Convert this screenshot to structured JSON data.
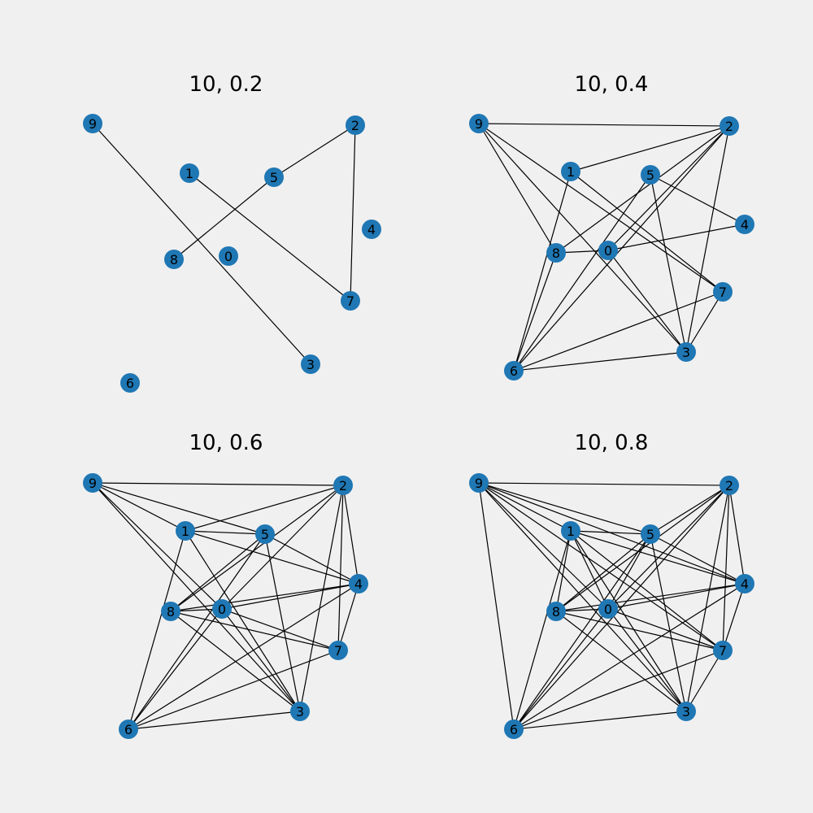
{
  "colors": {
    "background": "#f0f0f0",
    "node": "#1f77b4",
    "edge": "#000000",
    "label": "#000000"
  },
  "panels": [
    {
      "id": "p02",
      "title": "10, 0.2",
      "edges": [
        [
          9,
          3
        ],
        [
          1,
          7
        ],
        [
          2,
          5
        ],
        [
          2,
          7
        ],
        [
          5,
          8
        ]
      ]
    },
    {
      "id": "p04",
      "title": "10, 0.4",
      "edges": [
        [
          9,
          2
        ],
        [
          9,
          8
        ],
        [
          9,
          3
        ],
        [
          9,
          7
        ],
        [
          1,
          2
        ],
        [
          1,
          6
        ],
        [
          1,
          7
        ],
        [
          2,
          8
        ],
        [
          2,
          0
        ],
        [
          2,
          6
        ],
        [
          2,
          3
        ],
        [
          5,
          4
        ],
        [
          5,
          6
        ],
        [
          5,
          3
        ],
        [
          8,
          6
        ],
        [
          8,
          0
        ],
        [
          0,
          4
        ],
        [
          0,
          3
        ],
        [
          6,
          7
        ],
        [
          6,
          3
        ],
        [
          7,
          3
        ]
      ]
    },
    {
      "id": "p06",
      "title": "10, 0.6",
      "edges": [
        [
          9,
          2
        ],
        [
          9,
          1
        ],
        [
          9,
          5
        ],
        [
          9,
          3
        ],
        [
          9,
          0
        ],
        [
          1,
          2
        ],
        [
          1,
          5
        ],
        [
          1,
          4
        ],
        [
          1,
          6
        ],
        [
          1,
          3
        ],
        [
          2,
          8
        ],
        [
          2,
          0
        ],
        [
          2,
          3
        ],
        [
          2,
          7
        ],
        [
          2,
          4
        ],
        [
          5,
          8
        ],
        [
          5,
          4
        ],
        [
          5,
          3
        ],
        [
          4,
          8
        ],
        [
          4,
          0
        ],
        [
          4,
          6
        ],
        [
          4,
          7
        ],
        [
          8,
          0
        ],
        [
          8,
          7
        ],
        [
          8,
          3
        ],
        [
          0,
          7
        ],
        [
          0,
          6
        ],
        [
          0,
          3
        ],
        [
          6,
          7
        ],
        [
          6,
          3
        ],
        [
          6,
          5
        ]
      ]
    },
    {
      "id": "p08",
      "title": "10, 0.8",
      "edges": [
        [
          9,
          2
        ],
        [
          9,
          1
        ],
        [
          9,
          5
        ],
        [
          9,
          4
        ],
        [
          9,
          7
        ],
        [
          9,
          3
        ],
        [
          9,
          0
        ],
        [
          9,
          6
        ],
        [
          1,
          5
        ],
        [
          1,
          4
        ],
        [
          1,
          8
        ],
        [
          1,
          6
        ],
        [
          1,
          0
        ],
        [
          1,
          3
        ],
        [
          1,
          7
        ],
        [
          2,
          5
        ],
        [
          2,
          8
        ],
        [
          2,
          0
        ],
        [
          2,
          6
        ],
        [
          2,
          7
        ],
        [
          2,
          3
        ],
        [
          2,
          4
        ],
        [
          5,
          8
        ],
        [
          5,
          4
        ],
        [
          5,
          6
        ],
        [
          5,
          3
        ],
        [
          5,
          0
        ],
        [
          4,
          0
        ],
        [
          4,
          8
        ],
        [
          4,
          6
        ],
        [
          4,
          7
        ],
        [
          8,
          0
        ],
        [
          8,
          7
        ],
        [
          8,
          3
        ],
        [
          0,
          7
        ],
        [
          0,
          6
        ],
        [
          0,
          3
        ],
        [
          6,
          7
        ],
        [
          6,
          3
        ],
        [
          7,
          3
        ]
      ]
    }
  ]
}
